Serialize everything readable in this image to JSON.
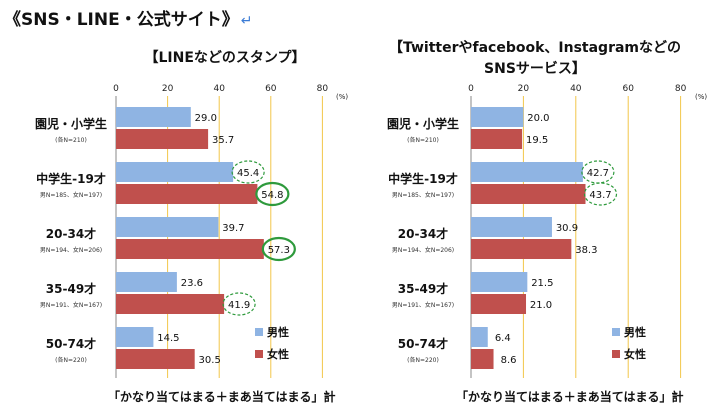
{
  "page": {
    "title": "《SNS・LINE・公式サイト》",
    "return_mark": "↵"
  },
  "colors": {
    "male": "#8fb4e3",
    "female": "#c0504d",
    "grid": "#f2c64a",
    "highlight_green": "#2e9a3c"
  },
  "chart_data": [
    {
      "type": "bar",
      "orientation": "horizontal",
      "title_lines": [
        "【LINEなどのスタンプ】"
      ],
      "xlim": [
        0,
        80
      ],
      "x_ticks": [
        "0",
        "20",
        "40",
        "60",
        "80"
      ],
      "unit": "(%)",
      "grid": true,
      "categories": [
        {
          "label": "園児・小学生",
          "sub": "(各N=210)"
        },
        {
          "label": "中学生-19才",
          "sub": "男N=185、女N=197)"
        },
        {
          "label": "20-34才",
          "sub": "男N=194、女N=206)"
        },
        {
          "label": "35-49才",
          "sub": "男N=191、女N=167)"
        },
        {
          "label": "50-74才",
          "sub": "(各N=220)"
        }
      ],
      "series": [
        {
          "name": "男性",
          "color": "#8fb4e3",
          "values": [
            29.0,
            45.4,
            39.7,
            23.6,
            14.5
          ],
          "labels": [
            "29.0",
            "45.4",
            "39.7",
            "23.6",
            "14.5"
          ]
        },
        {
          "name": "女性",
          "color": "#c0504d",
          "values": [
            35.7,
            54.8,
            57.3,
            41.9,
            30.5
          ],
          "labels": [
            "35.7",
            "54.8",
            "57.3",
            "41.9",
            "30.5"
          ]
        }
      ],
      "highlights": [
        {
          "series": 0,
          "category": 1,
          "style": "dashed"
        },
        {
          "series": 1,
          "category": 1,
          "style": "solid"
        },
        {
          "series": 1,
          "category": 2,
          "style": "solid"
        },
        {
          "series": 1,
          "category": 3,
          "style": "dashed"
        }
      ],
      "legend": {
        "position": "bottom-right"
      },
      "footer": "「かなり当てはまる＋まあ当てはまる」計"
    },
    {
      "type": "bar",
      "orientation": "horizontal",
      "title_lines": [
        "【Twitterやfacebook、Instagramなどの",
        "SNSサービス】"
      ],
      "xlim": [
        0,
        80
      ],
      "x_ticks": [
        "0",
        "20",
        "40",
        "60",
        "80"
      ],
      "unit": "(%)",
      "grid": true,
      "categories": [
        {
          "label": "園児・小学生",
          "sub": "(各N=210)"
        },
        {
          "label": "中学生-19才",
          "sub": "男N=185、女N=197)"
        },
        {
          "label": "20-34才",
          "sub": "男N=194、女N=206)"
        },
        {
          "label": "35-49才",
          "sub": "男N=191、女N=167)"
        },
        {
          "label": "50-74才",
          "sub": "(各N=220)"
        }
      ],
      "series": [
        {
          "name": "男性",
          "color": "#8fb4e3",
          "values": [
            20.0,
            42.7,
            30.9,
            21.5,
            6.4
          ],
          "labels": [
            "20.0",
            "42.7",
            "30.9",
            "21.5",
            "6.4"
          ]
        },
        {
          "name": "女性",
          "color": "#c0504d",
          "values": [
            19.5,
            43.7,
            38.3,
            21.0,
            8.6
          ],
          "labels": [
            "19.5",
            "43.7",
            "38.3",
            "21.0",
            "8.6"
          ]
        }
      ],
      "highlights": [
        {
          "series": 0,
          "category": 1,
          "style": "dashed"
        },
        {
          "series": 1,
          "category": 1,
          "style": "dashed"
        }
      ],
      "legend": {
        "position": "bottom-right"
      },
      "footer": "「かなり当てはまる＋まあ当てはまる」計"
    }
  ]
}
